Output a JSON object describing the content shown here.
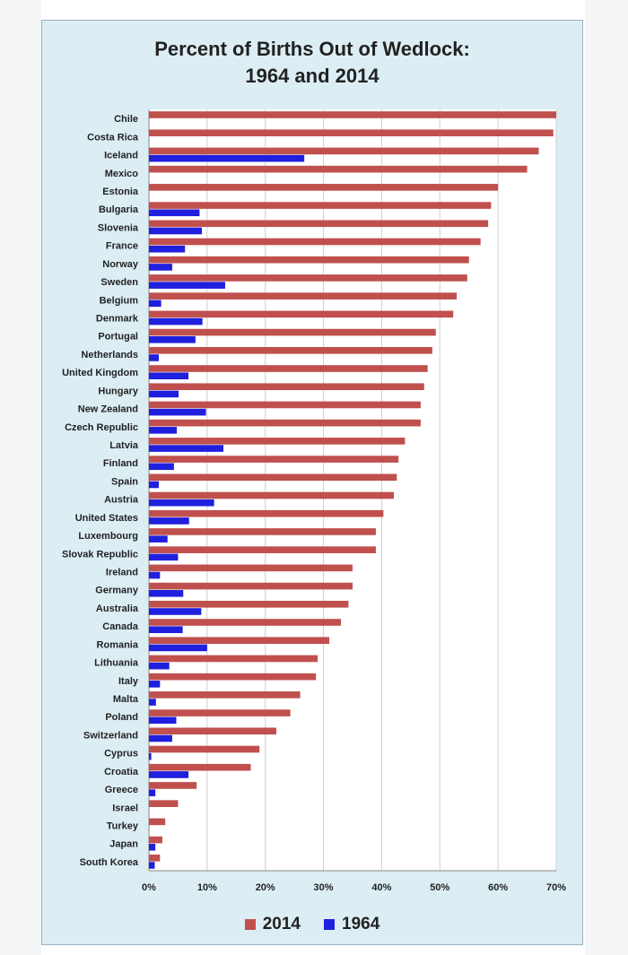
{
  "chart_data": {
    "type": "bar",
    "orientation": "horizontal",
    "title": "Percent of Births Out of Wedlock:",
    "subtitle": "1964 and 2014",
    "xlim": [
      0,
      70
    ],
    "x_ticks": [
      "0%",
      "10%",
      "20%",
      "30%",
      "40%",
      "50%",
      "60%",
      "70%"
    ],
    "x_tick_values": [
      0,
      10,
      20,
      30,
      40,
      50,
      60,
      70
    ],
    "grid": "vertical",
    "legend_position": "bottom",
    "categories": [
      "Chile",
      "Costa Rica",
      "Iceland",
      "Mexico",
      "Estonia",
      "Bulgaria",
      "Slovenia",
      "France",
      "Norway",
      "Sweden",
      "Belgium",
      "Denmark",
      "Portugal",
      "Netherlands",
      "United Kingdom",
      "Hungary",
      "New Zealand",
      "Czech Republic",
      "Latvia",
      "Finland",
      "Spain",
      "Austria",
      "United States",
      "Luxembourg",
      "Slovak Republic",
      "Ireland",
      "Germany",
      "Australia",
      "Canada",
      "Romania",
      "Lithuania",
      "Italy",
      "Malta",
      "Poland",
      "Switzerland",
      "Cyprus",
      "Croatia",
      "Greece",
      "Israel",
      "Turkey",
      "Japan",
      "South Korea"
    ],
    "series": [
      {
        "name": "2014",
        "color": "#c0504d",
        "values": [
          70.0,
          69.5,
          67.0,
          65.0,
          60.0,
          58.8,
          58.3,
          57.0,
          55.0,
          54.7,
          52.9,
          52.3,
          49.3,
          48.7,
          47.9,
          47.3,
          46.7,
          46.7,
          44.0,
          42.9,
          42.6,
          42.1,
          40.3,
          39.0,
          39.0,
          35.0,
          35.0,
          34.3,
          33.0,
          31.0,
          29.0,
          28.7,
          26.0,
          24.3,
          21.9,
          19.0,
          17.5,
          8.2,
          5.0,
          2.8,
          2.3,
          1.9
        ]
      },
      {
        "name": "1964",
        "color": "#1f1fdd",
        "values": [
          0,
          0,
          26.7,
          0,
          0,
          8.7,
          9.1,
          6.2,
          4.0,
          13.1,
          2.1,
          9.2,
          8.0,
          1.7,
          6.8,
          5.1,
          9.8,
          4.8,
          12.8,
          4.3,
          1.7,
          11.2,
          6.9,
          3.2,
          5.0,
          1.9,
          5.9,
          9.0,
          5.8,
          10.0,
          3.5,
          1.9,
          1.2,
          4.7,
          4.0,
          0.4,
          6.8,
          1.1,
          0,
          0,
          1.1,
          1.0
        ]
      }
    ]
  }
}
